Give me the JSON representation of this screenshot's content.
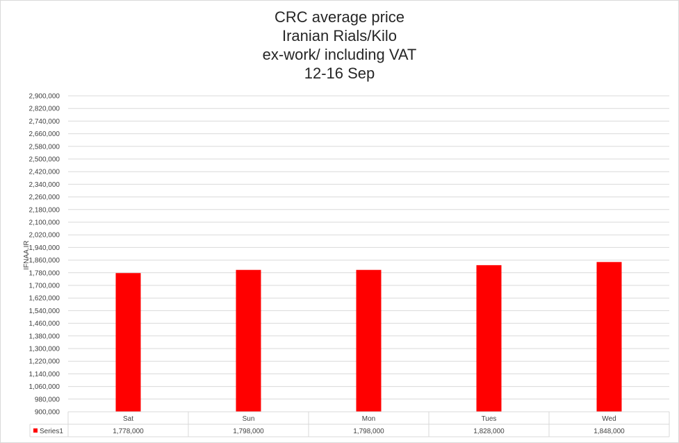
{
  "chart_data": {
    "type": "bar",
    "title_lines": [
      "CRC average price",
      "Iranian Rials/Kilo",
      "ex-work/ including VAT",
      "12-16 Sep"
    ],
    "xlabel": "",
    "ylabel": "IFNAA.IR",
    "categories": [
      "Sat",
      "Sun",
      "Mon",
      "Tues",
      "Wed"
    ],
    "series": [
      {
        "name": "Series1",
        "values": [
          1778000,
          1798000,
          1798000,
          1828000,
          1848000
        ],
        "value_labels": [
          "1,778,000",
          "1,798,000",
          "1,798,000",
          "1,828,000",
          "1,848,000"
        ],
        "color": "#ff0000"
      }
    ],
    "ylim": [
      900000,
      2900000
    ],
    "ytick_step": 80000,
    "ytick_labels": [
      "900,000",
      "980,000",
      "1,060,000",
      "1,140,000",
      "1,220,000",
      "1,300,000",
      "1,380,000",
      "1,460,000",
      "1,540,000",
      "1,620,000",
      "1,700,000",
      "1,780,000",
      "1,860,000",
      "1,940,000",
      "2,020,000",
      "2,100,000",
      "2,180,000",
      "2,260,000",
      "2,340,000",
      "2,420,000",
      "2,500,000",
      "2,580,000",
      "2,660,000",
      "2,740,000",
      "2,820,000",
      "2,900,000"
    ],
    "grid": true,
    "legend": "data-table",
    "colors": {
      "bar": "#ff0000",
      "grid": "#d9d9d9",
      "text": "#404040"
    }
  }
}
